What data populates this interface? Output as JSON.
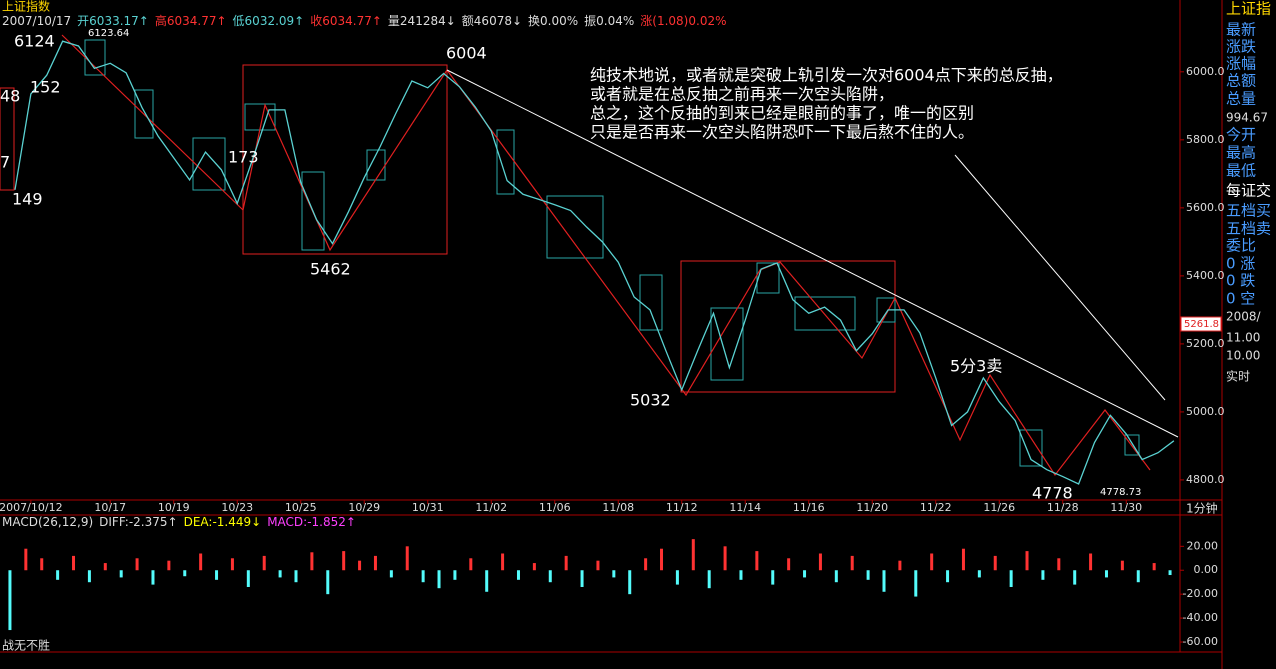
{
  "chart_data": [
    {
      "type": "line",
      "title": "上证指数",
      "header": [
        "2007/10/17",
        "开6033.17↑",
        "高6034.77↑",
        "低6032.09↑",
        "收6034.77↑",
        "量241284↓",
        "额46078↓",
        "换0.00%",
        "振0.04%",
        "涨(1.08)0.02%"
      ],
      "categories": [
        null,
        "2007/10/12",
        null,
        null,
        null,
        null,
        "10/17",
        null,
        null,
        null,
        "10/19",
        null,
        null,
        null,
        "10/23",
        null,
        null,
        null,
        "10/25",
        null,
        null,
        null,
        "10/29",
        null,
        null,
        null,
        "10/31",
        null,
        null,
        null,
        "11/02",
        null,
        null,
        null,
        "11/06",
        null,
        null,
        null,
        "11/08",
        null,
        null,
        null,
        "11/12",
        null,
        null,
        null,
        "11/14",
        null,
        null,
        null,
        "11/16",
        null,
        null,
        null,
        "11/20",
        null,
        null,
        null,
        "11/22",
        null,
        null,
        null,
        "11/26",
        null,
        null,
        null,
        "11/28",
        null,
        null,
        null,
        "11/30",
        null,
        null,
        null
      ],
      "values": [
        5653,
        5935,
        5990,
        6090,
        6076,
        6010,
        6025,
        5997,
        5895,
        5812,
        5747,
        5682,
        5764,
        5712,
        5613,
        5747,
        5888,
        5888,
        5675,
        5565,
        5495,
        5588,
        5689,
        5780,
        5879,
        5973,
        5953,
        5995,
        5956,
        5896,
        5826,
        5680,
        5640,
        5625,
        5609,
        5592,
        5544,
        5500,
        5440,
        5338,
        5300,
        5180,
        5065,
        5180,
        5290,
        5130,
        5270,
        5420,
        5438,
        5330,
        5290,
        5308,
        5270,
        5180,
        5230,
        5300,
        5300,
        5232,
        5100,
        4960,
        5000,
        5100,
        5030,
        4975,
        4860,
        4830,
        4810,
        4788,
        4910,
        4990,
        4935,
        4860,
        4880,
        4915
      ],
      "color": "#5ad2d2",
      "ylim": [
        4741,
        6170
      ],
      "yticks": [
        {
          "value": 4800,
          "label": "4800.0"
        },
        {
          "value": 5000,
          "label": "5000.0"
        },
        {
          "value": 5200,
          "label": "5200.0"
        },
        {
          "value": 5400,
          "label": "5400.0"
        },
        {
          "value": 5600,
          "label": "5600.0"
        },
        {
          "value": 5800,
          "label": "5800.0"
        },
        {
          "value": 6000,
          "label": "6000.0"
        }
      ],
      "annotations": [
        "6124",
        "6123.64",
        "152",
        "149",
        "173",
        "5462",
        "6004",
        "5032",
        "5分3卖",
        "4778",
        "4778.73",
        "48",
        "7"
      ],
      "note": [
        "纯技术地说，或者就是突破上轨引发一次对6004点下来的总反抽，",
        "或者就是在总反抽之前再来一次空头陷阱，",
        "总之，这个反抽的到来已经是眼前的事了，唯一的区别",
        "只是是否再来一次空头陷阱恐吓一下最后熬不住的人。"
      ],
      "price_marker": "5261.8",
      "period": "1分钟",
      "sidebar": [
        "上证指",
        "最新",
        "涨跌",
        "涨幅",
        "总额",
        "总量",
        "994.67",
        "今开",
        "最高",
        "最低",
        "每证交",
        "五档买",
        "五档卖",
        "委比",
        "0 涨",
        "0 跌",
        "0 空",
        "2008/",
        "11.00",
        "10.00",
        "实时"
      ]
    },
    {
      "type": "bar",
      "title": "MACD(26,12,9)",
      "legend": [
        "DIFF:-2.375↑",
        "DEA:-1.449↓",
        "MACD:-1.852↑"
      ],
      "values": [
        -50,
        18,
        10,
        -8,
        12,
        -10,
        6,
        -6,
        10,
        -12,
        8,
        -5,
        14,
        -8,
        10,
        -14,
        12,
        -6,
        -10,
        15,
        -20,
        16,
        8,
        12,
        -6,
        20,
        -10,
        -15,
        -8,
        10,
        -18,
        14,
        -8,
        6,
        -10,
        12,
        -14,
        8,
        -6,
        -20,
        10,
        18,
        -12,
        26,
        -15,
        20,
        -8,
        16,
        -12,
        10,
        -6,
        14,
        -10,
        12,
        -8,
        -18,
        8,
        -22,
        14,
        -10,
        18,
        -6,
        12,
        -14,
        16,
        -8,
        10,
        -12,
        14,
        -6,
        8,
        -10,
        6,
        -4
      ],
      "up_color": "#ff3232",
      "down_color": "#54fcfc",
      "ylim": [
        -65,
        42
      ],
      "yticks": [
        {
          "value": -60,
          "label": "-60.00"
        },
        {
          "value": -40,
          "label": "-40.00"
        },
        {
          "value": -20,
          "label": "-20.00"
        },
        {
          "value": 0,
          "label": "0.00"
        },
        {
          "value": 20,
          "label": "20.00"
        }
      ],
      "footer": "战无不胜"
    }
  ]
}
